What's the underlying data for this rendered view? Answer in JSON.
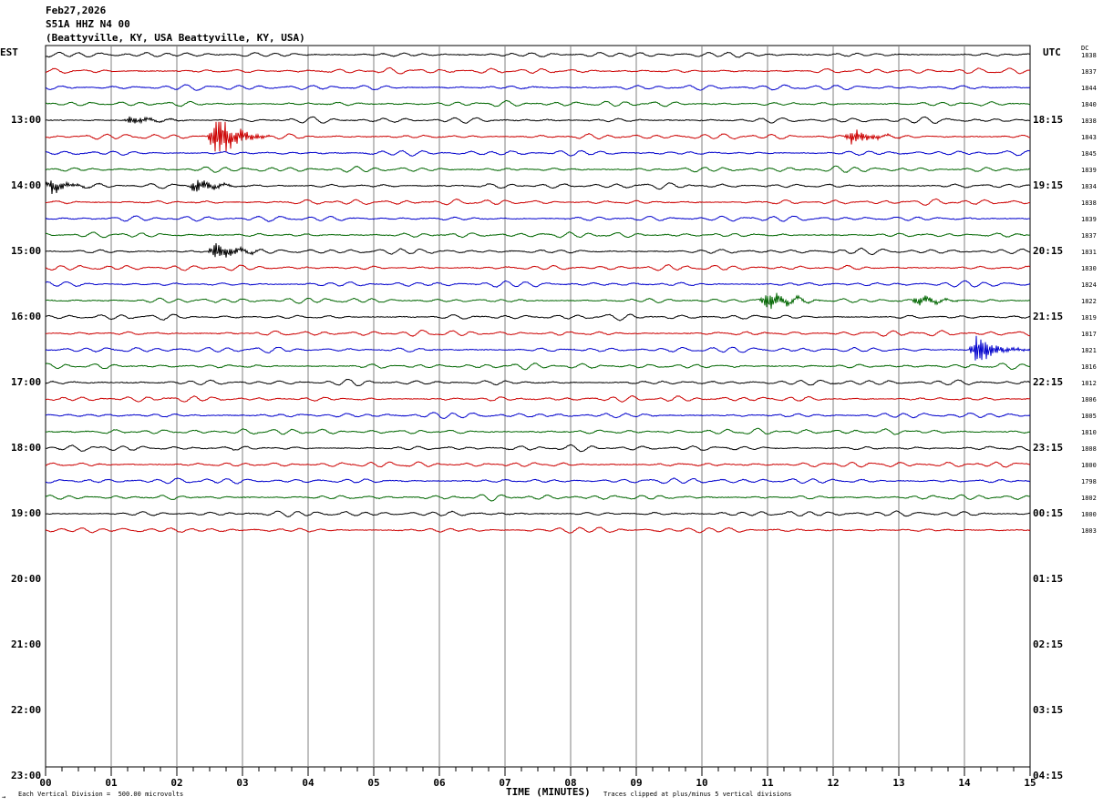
{
  "header": {
    "date": "Feb27,2026",
    "station": "S51A HHZ N4 00",
    "location": "(Beattyville, KY, USA Beattyville, KY, USA)"
  },
  "left_timezone": "EST",
  "right_timezone": "UTC",
  "dc_label": "DC",
  "footer": {
    "scale_note": "Each Vertical Division =  500.00 microvolts",
    "xlabel": "TIME (MINUTES)",
    "clip_note": "Traces clipped at plus/minus 5 vertical divisions",
    "corner_mark": "→"
  },
  "colors": {
    "trace_cycle": [
      "#000000",
      "#cc0000",
      "#0000cc",
      "#006600"
    ],
    "grid": "#808080",
    "background": "#ffffff"
  },
  "chart_data": {
    "type": "line",
    "plot_kind": "helicorder seismogram",
    "xlabel": "TIME (MINUTES)",
    "x_ticks": [
      "00",
      "01",
      "02",
      "03",
      "04",
      "05",
      "06",
      "07",
      "08",
      "09",
      "10",
      "11",
      "12",
      "13",
      "14",
      "15"
    ],
    "xlim": [
      0,
      15
    ],
    "minutes_per_line": 15,
    "rows_total": 44,
    "left_hour_labels": [
      "13:00",
      "14:00",
      "15:00",
      "16:00",
      "17:00",
      "18:00",
      "19:00",
      "20:00",
      "21:00",
      "22:00",
      "23:00"
    ],
    "right_hour_labels": [
      "18:15",
      "19:15",
      "20:15",
      "21:15",
      "22:15",
      "23:15",
      "00:15",
      "01:15",
      "02:15",
      "03:15",
      "04:15"
    ],
    "trace_dc_offsets": [
      "1838",
      "1837",
      "1844",
      "1840",
      "1838",
      "1843",
      "1845",
      "1839",
      "1834",
      "1838",
      "1839",
      "1837",
      "1831",
      "1830",
      "1824",
      "1822",
      "1819",
      "1817",
      "1821",
      "1816",
      "1812",
      "1806",
      "1805",
      "1810",
      "1808",
      "1800",
      "1798",
      "1802",
      "1800",
      "1803"
    ],
    "events": [
      {
        "trace": 4,
        "minute": 1.3,
        "amplitude": 0.4
      },
      {
        "trace": 5,
        "minute": 2.6,
        "amplitude": 2.4
      },
      {
        "trace": 5,
        "minute": 12.3,
        "amplitude": 0.7
      },
      {
        "trace": 8,
        "minute": 0.1,
        "amplitude": 0.6
      },
      {
        "trace": 8,
        "minute": 2.3,
        "amplitude": 0.7
      },
      {
        "trace": 12,
        "minute": 2.6,
        "amplitude": 0.9
      },
      {
        "trace": 15,
        "minute": 11.0,
        "amplitude": 1.0
      },
      {
        "trace": 15,
        "minute": 13.3,
        "amplitude": 0.5
      },
      {
        "trace": 18,
        "minute": 14.2,
        "amplitude": 1.4
      }
    ]
  }
}
